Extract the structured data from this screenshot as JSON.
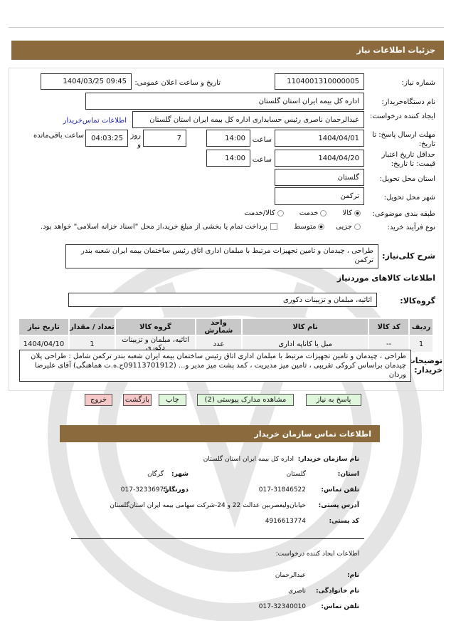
{
  "header": {
    "title": "جزئیات اطلاعات نیاز"
  },
  "form": {
    "need_number_label": "شماره نیاز:",
    "need_number": "1104001310000005",
    "announce_label": "تاریخ و ساعت اعلان عمومی:",
    "announce_value": "1404/03/25 09:45",
    "buyer_label": "نام دستگاه‌خریدار:",
    "buyer": "اداره کل بیمه ایران استان  گلستان",
    "creator_label": "ایجاد کننده درخواست:",
    "creator": "عبدالرحمان  ناصری رئیس  حسابداری اداره کل بیمه ایران استان  گلستان",
    "contact_link": "اطلاعات تماس‌خریدار",
    "deadline_label": "مهلت ارسال پاسخ: تا تاریخ:",
    "deadline_date": "1404/04/01",
    "time_label": "ساعت",
    "deadline_time": "14:00",
    "days": "7",
    "days_label": "روز و",
    "remaining": "04:03:25",
    "remaining_label": "ساعت باقی‌مانده",
    "validity_label": "حداقل تاریخ اعتبار قیمت: تا تاریخ:",
    "validity_date": "1404/04/20",
    "validity_time": "14:00",
    "province_label": "استان محل تحویل:",
    "province": "گلستان",
    "city_label": "شهر محل تحویل:",
    "city": "ترکمن",
    "category_label": "طبقه بندی موضوعی:",
    "category_options": [
      "کالا",
      "خدمت",
      "کالا/خدمت"
    ],
    "category_selected": "کالا",
    "process_label": "نوع فرآیند خرید:",
    "process_options": [
      "جزیی",
      "متوسط"
    ],
    "process_selected": "متوسط",
    "payment_note": "پرداخت تمام یا بخشی از مبلغ خرید،از محل \"اسناد خزانه اسلامی\" خواهد بود.",
    "summary_label": "شرح کلی‌نیاز:",
    "summary": "طراحی ، چیدمان و تامین تجهیزات مرتبط با مبلمان اداری اتاق رئیس ساختمان بیمه ایران شعبه بندر ترکمن",
    "goods_title": "اطلاعات کالاهای موردنیاز",
    "goods_group_label": "گروه‌کالا:",
    "goods_group": "اثاثیه، مبلمان و تزیینات  دکوری",
    "table": {
      "headers": [
        "ردیف",
        "کد کالا",
        "نام کالا",
        "واحد شمارش",
        "گروه کالا",
        "تعداد / مقدار",
        "تاریخ نیاز"
      ],
      "rows": [
        [
          "1",
          "--",
          "مبل یا  کاناپه اداری",
          "عدد",
          "اثاثیه، مبلمان و تزیینات دکوری",
          "1",
          "1404/04/10"
        ]
      ]
    },
    "notes_label": "توضیحات خریدار:",
    "notes": "طراحی ، چیدمان و تامین تجهیزات مرتبط با مبلمان اداری اتاق رئیس ساختمان بیمه ایران شعبه بندر ترکمن شامل : طراحی پلان چیدمان براساس کروکی تقریبی ، تامین میز مدیریت ، کمد پشت میز مدیر و... (09113701912ج.ه.ت هماهنگی) آقای علیرضا وردان"
  },
  "buttons": {
    "reply": "پاسخ به نیاز",
    "attachments": "مشاهده مدارک پیوستی (2)",
    "print": "چاپ",
    "back": "بازگشت",
    "exit": "خروج"
  },
  "contact": {
    "title": "اطلاعات تماس سازمان خریدار",
    "org_label": "نام سازمان خریدار:",
    "org": "اداره کل بیمه ایران استان گلستان",
    "province_label": "استان:",
    "province": "گلستان",
    "city_label": "شهر:",
    "city": "گرگان",
    "phone_label": "تلفن تماس:",
    "phone": "017-31846522",
    "fax_label": "دورنگار:",
    "fax": "017-32336975",
    "address_label": "آدرس پستی:",
    "address": "خیابان‌ولیعصربین عدالت 22 و 24-شرکت سهامی بیمه ایران استان‌گلستان",
    "postal_label": "کد پستی:",
    "postal": "4916613774",
    "creator_title": "اطلاعات ایجاد کننده درخواست:",
    "name_label": "نام:",
    "name": "عبدالرحمان",
    "family_label": "نام خانوادگی:",
    "family": "ناصری",
    "cphone_label": "تلفن تماس:",
    "cphone": "017-32340010"
  },
  "colors": {
    "header": "#8b6b3e",
    "green_button": "#dff5dc",
    "red_button": "#f7c8c8",
    "link": "#1a1aa8"
  }
}
